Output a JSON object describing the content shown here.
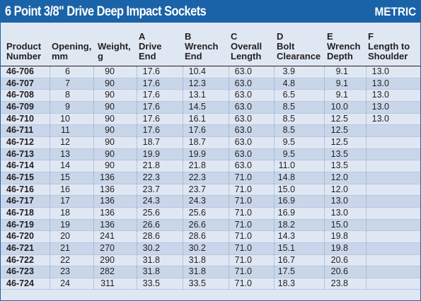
{
  "title": "6 Point 3/8\" Drive Deep Impact Sockets",
  "badge": "METRIC",
  "headers": [
    "Product\nNumber",
    "Opening,\nmm",
    "Weight,\ng",
    "A\nDrive\nEnd",
    "B\nWrench\nEnd",
    "C\nOverall\nLength",
    "D\nBolt\nClearance",
    "E\nWrench\nDepth",
    "F\nLength to\nShoulder"
  ],
  "rows": [
    [
      "46-706",
      "6",
      "90",
      "17.6",
      "10.4",
      "63.0",
      "3.9",
      "9.1",
      "13.0"
    ],
    [
      "46-707",
      "7",
      "90",
      "17.6",
      "12.3",
      "63.0",
      "4.8",
      "9.1",
      "13.0"
    ],
    [
      "46-708",
      "8",
      "90",
      "17.6",
      "13.1",
      "63.0",
      "6.5",
      "9.1",
      "13.0"
    ],
    [
      "46-709",
      "9",
      "90",
      "17.6",
      "14.5",
      "63.0",
      "8.5",
      "10.0",
      "13.0"
    ],
    [
      "46-710",
      "10",
      "90",
      "17.6",
      "16.1",
      "63.0",
      "8.5",
      "12.5",
      "13.0"
    ],
    [
      "46-711",
      "11",
      "90",
      "17.6",
      "17.6",
      "63.0",
      "8.5",
      "12.5",
      ""
    ],
    [
      "46-712",
      "12",
      "90",
      "18.7",
      "18.7",
      "63.0",
      "9.5",
      "12.5",
      ""
    ],
    [
      "46-713",
      "13",
      "90",
      "19.9",
      "19.9",
      "63.0",
      "9.5",
      "13.5",
      ""
    ],
    [
      "46-714",
      "14",
      "90",
      "21.8",
      "21.8",
      "63.0",
      "11.0",
      "13.5",
      ""
    ],
    [
      "46-715",
      "15",
      "136",
      "22.3",
      "22.3",
      "71.0",
      "14.8",
      "12.0",
      ""
    ],
    [
      "46-716",
      "16",
      "136",
      "23.7",
      "23.7",
      "71.0",
      "15.0",
      "12.0",
      ""
    ],
    [
      "46-717",
      "17",
      "136",
      "24.3",
      "24.3",
      "71.0",
      "16.9",
      "13.0",
      ""
    ],
    [
      "46-718",
      "18",
      "136",
      "25.6",
      "25.6",
      "71.0",
      "16.9",
      "13.0",
      ""
    ],
    [
      "46-719",
      "19",
      "136",
      "26.6",
      "26.6",
      "71.0",
      "18.2",
      "15.0",
      ""
    ],
    [
      "46-720",
      "20",
      "241",
      "28.6",
      "28.6",
      "71.0",
      "14.3",
      "19.8",
      ""
    ],
    [
      "46-721",
      "21",
      "270",
      "30.2",
      "30.2",
      "71.0",
      "15.1",
      "19.8",
      ""
    ],
    [
      "46-722",
      "22",
      "290",
      "31.8",
      "31.8",
      "71.0",
      "16.7",
      "20.6",
      ""
    ],
    [
      "46-723",
      "23",
      "282",
      "31.8",
      "31.8",
      "71.0",
      "17.5",
      "20.6",
      ""
    ],
    [
      "46-724",
      "24",
      "311",
      "33.5",
      "33.5",
      "71.0",
      "18.3",
      "23.8",
      ""
    ]
  ]
}
